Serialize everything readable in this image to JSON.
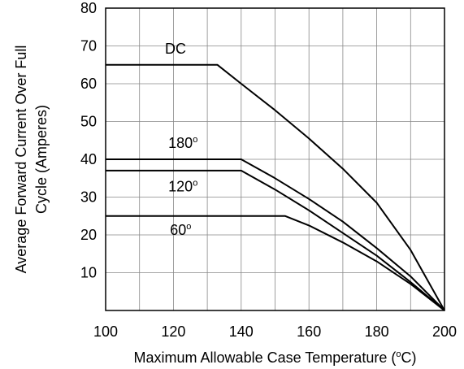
{
  "chart_data": {
    "type": "line",
    "title": "",
    "xlabel": "Maximum Allowable Case Temperature (°C)",
    "xlabel_main": "Maximum Allowable Case Temperature (",
    "xlabel_degree": "o",
    "xlabel_unit": "C)",
    "ylabel_line1": "Average Forward Current Over Full",
    "ylabel_line2": "Cycle (Amperes)",
    "xlim": [
      100,
      200
    ],
    "ylim": [
      0,
      80
    ],
    "x_ticks": [
      100,
      120,
      140,
      160,
      180,
      200
    ],
    "y_ticks": [
      10,
      20,
      30,
      40,
      50,
      60,
      70,
      80
    ],
    "x_grid_step": 10,
    "y_grid_step": 10,
    "grid": true,
    "series": [
      {
        "name": "DC",
        "label_text": "DC",
        "label_degree": "",
        "points": [
          [
            100,
            65
          ],
          [
            133,
            65
          ],
          [
            140,
            60
          ],
          [
            150,
            53
          ],
          [
            160,
            45.5
          ],
          [
            170,
            37.5
          ],
          [
            180,
            28.5
          ],
          [
            190,
            16
          ],
          [
            200,
            0
          ]
        ]
      },
      {
        "name": "180°",
        "label_text": "180",
        "label_degree": "o",
        "points": [
          [
            100,
            40
          ],
          [
            140,
            40
          ],
          [
            150,
            35
          ],
          [
            160,
            29.5
          ],
          [
            170,
            23.5
          ],
          [
            180,
            16.5
          ],
          [
            190,
            9
          ],
          [
            200,
            0
          ]
        ]
      },
      {
        "name": "120°",
        "label_text": "120",
        "label_degree": "o",
        "points": [
          [
            100,
            37
          ],
          [
            140,
            37
          ],
          [
            150,
            32
          ],
          [
            160,
            26.5
          ],
          [
            170,
            20.5
          ],
          [
            180,
            14.5
          ],
          [
            190,
            7.5
          ],
          [
            200,
            0
          ]
        ]
      },
      {
        "name": "60°",
        "label_text": "60",
        "label_degree": "o",
        "points": [
          [
            100,
            25
          ],
          [
            153,
            25
          ],
          [
            160,
            22.5
          ],
          [
            170,
            18
          ],
          [
            180,
            13
          ],
          [
            190,
            7
          ],
          [
            200,
            0
          ]
        ]
      }
    ],
    "label_anchors": [
      {
        "series": 0,
        "x": 117.5,
        "y": 68
      },
      {
        "series": 1,
        "x": 118.5,
        "y": 43
      },
      {
        "series": 2,
        "x": 118.5,
        "y": 31.5
      },
      {
        "series": 3,
        "x": 119,
        "y": 20
      }
    ]
  }
}
